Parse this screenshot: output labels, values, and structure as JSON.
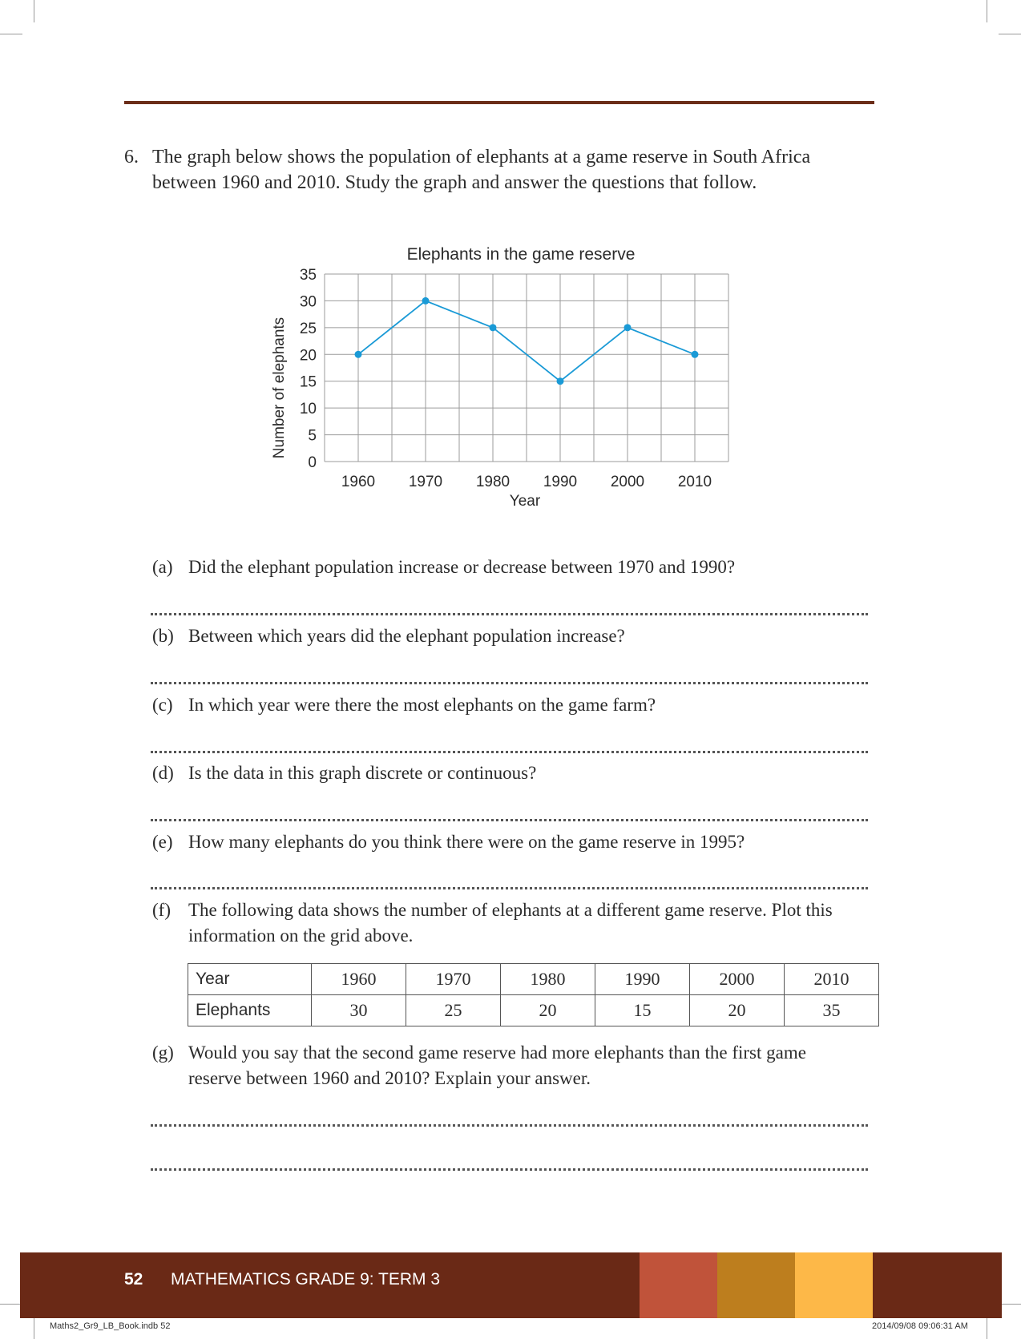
{
  "question": {
    "number": "6.",
    "text": "The graph below shows the population of elephants at a game reserve in South Africa between 1960 and 2010. Study the graph and answer the questions that follow."
  },
  "chart_data": {
    "type": "line",
    "title": "Elephants in the game reserve",
    "xlabel": "Year",
    "ylabel": "Number of elephants",
    "x": [
      1960,
      1970,
      1980,
      1990,
      2000,
      2010
    ],
    "values": [
      20,
      30,
      25,
      15,
      25,
      20
    ],
    "y_ticks": [
      0,
      5,
      10,
      15,
      20,
      25,
      30,
      35
    ],
    "ylim": [
      0,
      35
    ],
    "grid": true,
    "line_color": "#1a9ad6"
  },
  "subquestions": [
    {
      "label": "(a)",
      "text": "Did the elephant population increase or decrease between 1970 and 1990?"
    },
    {
      "label": "(b)",
      "text": "Between which years did the elephant population increase?"
    },
    {
      "label": "(c)",
      "text": "In which year were there the most elephants on the game farm?"
    },
    {
      "label": "(d)",
      "text": "Is the data in this graph discrete or continuous?"
    },
    {
      "label": "(e)",
      "text": "How many elephants do you think there were on the game reserve in 1995?"
    },
    {
      "label": "(f)",
      "text": "The following data shows the number of elephants at a different game reserve. Plot this information on the grid above."
    },
    {
      "label": "(g)",
      "text": "Would you say that the second game reserve had more elephants than the first game reserve between 1960 and 2010? Explain your answer."
    }
  ],
  "table": {
    "row1_header": "Year",
    "row2_header": "Elephants",
    "years": [
      "1960",
      "1970",
      "1980",
      "1990",
      "2000",
      "2010"
    ],
    "elephants": [
      "30",
      "25",
      "20",
      "15",
      "20",
      "35"
    ]
  },
  "footer": {
    "page_number": "52",
    "title": "MATHEMATICS GRADE 9: TERM 3",
    "colors": [
      "#c0533a",
      "#bd7e1e",
      "#fdb848"
    ]
  },
  "print_meta": {
    "file": "Maths2_Gr9_LB_Book.indb   52",
    "timestamp": "2014/09/08   09:06:31 AM"
  }
}
